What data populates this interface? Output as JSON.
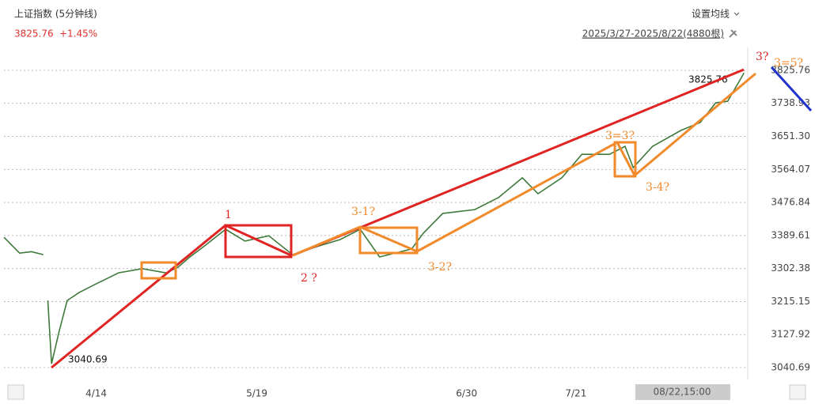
{
  "header": {
    "title": "上证指数 (5分钟线)",
    "quote_price": 3825.76,
    "quote_change": "+1.45%",
    "ma_setting": "设置均线",
    "range": "2025/3/27-2025/8/22(4880根)",
    "scroll_label": "08/22,15:00"
  },
  "chart_data": {
    "type": "line",
    "color": "#3f7a3a",
    "x": [
      0,
      2.1,
      3.7,
      5.3,
      5.6,
      5.9,
      6.4,
      7.4,
      8.5,
      10.1,
      12.2,
      15.4,
      18.6,
      21.8,
      23.4,
      25,
      27.1,
      29.8,
      32.4,
      35.6,
      38.8,
      42,
      45.2,
      47.9,
      50.5,
      54.8,
      56.4,
      59,
      63.3,
      66.5,
      69.7,
      71.8,
      75,
      77.7,
      81.4,
      83.5,
      84.6,
      87.2,
      91,
      93.6,
      95.7,
      97.3,
      99.5
    ],
    "values": [
      3385,
      3343,
      3347,
      3339,
      null,
      3218,
      3051,
      3135,
      3218,
      3239,
      3260,
      3291,
      3302,
      3291,
      3306,
      3333,
      3364,
      3406,
      3375,
      3389,
      3339,
      3360,
      3379,
      3406,
      3333,
      3354,
      3396,
      3448,
      3458,
      3490,
      3542,
      3500,
      3542,
      3604,
      3604,
      3625,
      3569,
      3625,
      3667,
      3688,
      3740,
      3744,
      3819
    ],
    "xlim": [
      0,
      100
    ],
    "xticks": [
      {
        "value": 12.4,
        "label": "4/14"
      },
      {
        "value": 34,
        "label": "5/19"
      },
      {
        "value": 62.2,
        "label": "6/30"
      },
      {
        "value": 76.9,
        "label": "7/21"
      }
    ],
    "ylim": [
      3009.4,
      3844.5
    ],
    "yticks": [
      3825.76,
      3738.93,
      {
        "value": 3651.3,
        "label": "3651.30"
      },
      3564.07,
      3476.84,
      3389.61,
      3302.38,
      3215.15,
      3127.92,
      3040.69
    ],
    "grid": true,
    "high_label": 3825.76,
    "low_label": 3040.69,
    "annotations": [
      "1",
      "2 ?",
      "3-1?",
      "3-2?",
      "3=3?",
      "3-4?",
      "3?",
      "3=5?"
    ]
  }
}
